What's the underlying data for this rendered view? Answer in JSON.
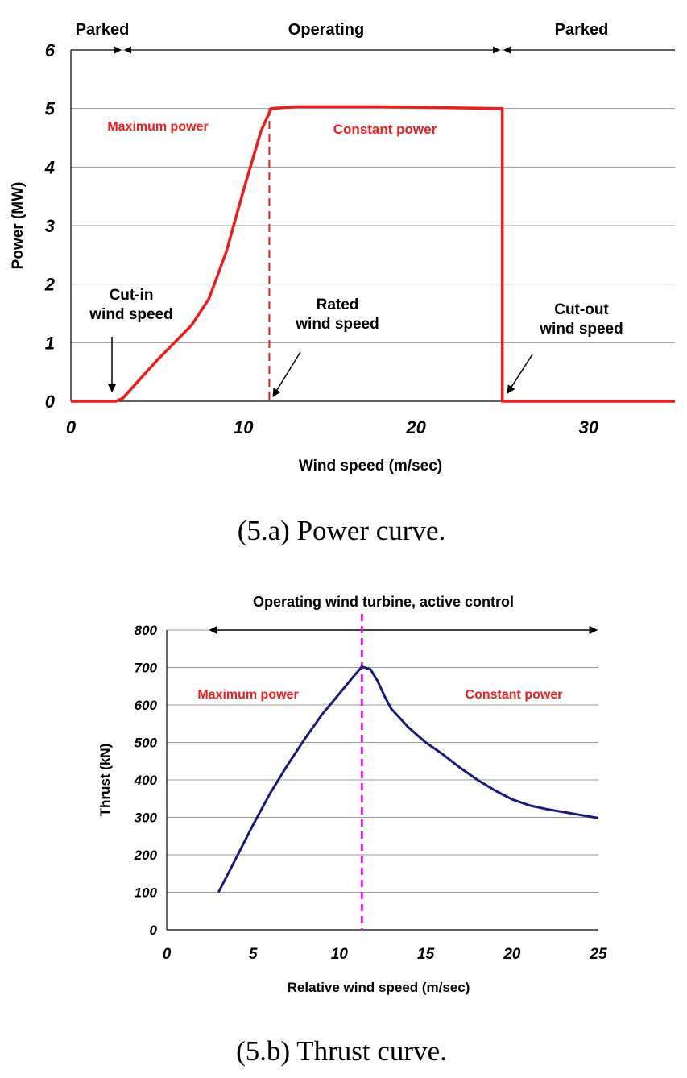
{
  "chart_data": [
    {
      "type": "line",
      "title": "",
      "xlabel": "Wind speed (m/sec)",
      "ylabel": "Power (MW)",
      "xlim": [
        0,
        35
      ],
      "ylim": [
        0,
        6
      ],
      "x_ticks": [
        "0",
        "10",
        "20",
        "30"
      ],
      "y_ticks": [
        "0",
        "1",
        "2",
        "3",
        "4",
        "5",
        "6"
      ],
      "grid": "horizontal",
      "legend": "none",
      "line_color": "#ee1c1c",
      "series": [
        {
          "x": [
            0,
            2.6,
            3.0,
            5.0,
            7.0,
            8.0,
            9.0,
            10.0,
            11.0,
            11.6,
            13.0,
            18.0,
            25.0,
            25.0,
            35.0
          ],
          "y": [
            0,
            0,
            0.05,
            0.7,
            1.3,
            1.75,
            2.55,
            3.6,
            4.6,
            5.0,
            5.03,
            5.03,
            5.0,
            0,
            0
          ]
        }
      ],
      "reference_lines": [
        {
          "x": 11.5,
          "style": "dashed",
          "color": "#ee1c1c"
        }
      ],
      "regions": [
        {
          "label": "Parked",
          "from": 0,
          "to": 3
        },
        {
          "label": "Operating",
          "from": 3,
          "to": 25
        },
        {
          "label": "Parked",
          "from": 25,
          "to": 35
        }
      ],
      "annotations": [
        {
          "text": "Maximum power",
          "color": "#ee1c1c"
        },
        {
          "text": "Constant power",
          "color": "#ee1c1c"
        },
        {
          "lines": [
            "Cut-in",
            "wind speed"
          ],
          "color": "#000000"
        },
        {
          "lines": [
            "Rated",
            "wind speed"
          ],
          "color": "#000000"
        },
        {
          "lines": [
            "Cut-out",
            "wind speed"
          ],
          "color": "#000000"
        }
      ],
      "caption": "(5.a) Power curve."
    },
    {
      "type": "line",
      "title": "Operating wind turbine, active control",
      "xlabel": "Relative wind speed (m/sec)",
      "ylabel": "Thrust (kN)",
      "xlim": [
        0,
        25
      ],
      "ylim": [
        0,
        800
      ],
      "x_ticks": [
        "0",
        "5",
        "10",
        "15",
        "20",
        "25"
      ],
      "y_ticks": [
        "0",
        "100",
        "200",
        "300",
        "400",
        "500",
        "600",
        "700",
        "800"
      ],
      "grid": "horizontal",
      "legend": "none",
      "line_color": "#1b1b7a",
      "series": [
        {
          "x": [
            3,
            4,
            5,
            6,
            7,
            8,
            9,
            10,
            10.8,
            11.3,
            11.8,
            12.2,
            12.6,
            13,
            14,
            15,
            16,
            17,
            18,
            19,
            20,
            21,
            22,
            23,
            24,
            25
          ],
          "y": [
            100,
            190,
            280,
            365,
            440,
            510,
            575,
            630,
            675,
            702,
            695,
            665,
            625,
            590,
            540,
            500,
            468,
            432,
            400,
            372,
            348,
            332,
            322,
            314,
            306,
            298
          ]
        }
      ],
      "reference_lines": [
        {
          "x": 11.3,
          "style": "dashed",
          "color": "#e020e0"
        }
      ],
      "range_arrow": {
        "from": 2.5,
        "to": 25
      },
      "annotations": [
        {
          "text": "Maximum power",
          "color": "#ee1c1c"
        },
        {
          "text": "Constant power",
          "color": "#ee1c1c"
        }
      ],
      "caption": "(5.b) Thrust curve."
    }
  ]
}
